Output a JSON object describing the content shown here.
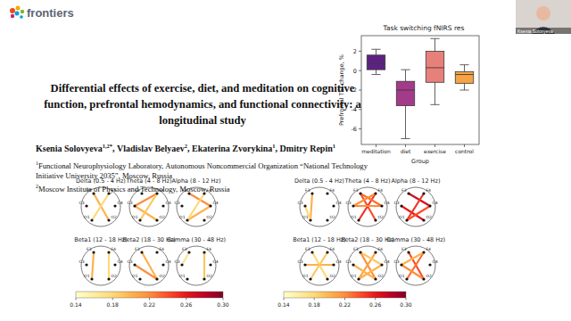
{
  "logo": "frontiers",
  "webcam_label": "Ksenia Solovyeva",
  "paper": {
    "title": [
      "Differential effects of exercise, diet, and meditation on cognitive",
      "function, prefrontal hemodynamics, and functional connectivity: a",
      "longitudinal study"
    ],
    "authors": [
      {
        "name": "Ksenia Solovyeva",
        "sup": "1,2*"
      },
      {
        "name": "Vladislav Belyaev",
        "sup": "2"
      },
      {
        "name": "Ekaterina Zvorykina",
        "sup": "1"
      },
      {
        "name": "Dmitry Repin",
        "sup": "1"
      }
    ],
    "author_separator": ", ",
    "affiliations": [
      {
        "sup": "1",
        "text": "Functional Neurophysiology Laboratory, Autonomous Noncommercial Organization “National Technology Initiative University 2035”, Moscow, Russia"
      },
      {
        "sup": "2",
        "text": "Moscow Institute of Physics and Technology, Moscow, Russia"
      }
    ]
  },
  "chart_data": {
    "type": "box",
    "title": "Task switching fNIRS res",
    "x_label": "Group",
    "y_label": "Prefrontal TSI change, %",
    "categories": [
      "meditation",
      "diet",
      "exercise",
      "control"
    ],
    "colors": [
      "#5e2183",
      "#a33a8a",
      "#e8807a",
      "#f7a344"
    ],
    "boxes": [
      {
        "min": -0.4,
        "q1": 0.1,
        "median": 0.7,
        "q3": 1.6,
        "max": 2.2
      },
      {
        "min": -7.0,
        "q1": -3.6,
        "median": -2.0,
        "q3": -1.1,
        "max": 0.1
      },
      {
        "min": -3.5,
        "q1": -1.2,
        "median": 0.3,
        "q3": 2.0,
        "max": 3.3
      },
      {
        "min": -2.0,
        "q1": -1.3,
        "median": -0.4,
        "q3": -0.1,
        "max": 0.6
      }
    ],
    "ylim": [
      -7.6,
      3.6
    ],
    "yticks": [
      -6,
      -4,
      -2,
      0,
      2
    ],
    "grid": false
  },
  "electrodes": [
    "F3",
    "F4",
    "C3",
    "C4",
    "O1",
    "O2"
  ],
  "connectivity": [
    {
      "colorbar": {
        "range": [
          0.14,
          0.3
        ],
        "ticks": [
          0.14,
          0.18,
          0.22,
          0.26,
          {
            "value": 0.3,
            "label": "0.30"
          }
        ]
      },
      "panels": [
        {
          "title": "Delta (0.5 - 4 Hz)",
          "edges": [
            {
              "from": "F3",
              "to": "O2",
              "value": 0.2
            },
            {
              "from": "F4",
              "to": "O1",
              "value": 0.18
            }
          ]
        },
        {
          "title": "Theta (4 - 8 Hz)",
          "edges": [
            {
              "from": "F4",
              "to": "C3",
              "value": 0.22
            },
            {
              "from": "C3",
              "to": "O2",
              "value": 0.2
            },
            {
              "from": "F4",
              "to": "O1",
              "value": 0.19
            }
          ]
        },
        {
          "title": "Alpha (8 - 12 Hz)",
          "edges": [
            {
              "from": "F3",
              "to": "C4",
              "value": 0.22
            },
            {
              "from": "C4",
              "to": "O1",
              "value": 0.2
            },
            {
              "from": "F4",
              "to": "O1",
              "value": 0.18
            }
          ]
        },
        {
          "title": "Beta1 (12 - 18 Hz)",
          "edges": [
            {
              "from": "F3",
              "to": "O1",
              "value": 0.2
            },
            {
              "from": "F4",
              "to": "O2",
              "value": 0.18
            }
          ]
        },
        {
          "title": "Beta2 (18 - 30 Hz)",
          "edges": [
            {
              "from": "F3",
              "to": "O2",
              "value": 0.2
            },
            {
              "from": "C3",
              "to": "O2",
              "value": 0.22
            }
          ]
        },
        {
          "title": "Gamma (30 - 48 Hz)",
          "edges": [
            {
              "from": "F4",
              "to": "O2",
              "value": 0.19
            },
            {
              "from": "F3",
              "to": "C3",
              "value": 0.17
            }
          ]
        }
      ]
    },
    {
      "colorbar": {
        "range": [
          0.14,
          0.3
        ],
        "ticks": [
          0.14,
          0.18,
          0.22,
          0.26,
          {
            "value": 0.3,
            "label": "0.30"
          }
        ]
      },
      "panels": [
        {
          "title": "Delta (0.5 - 4 Hz)",
          "edges": [
            {
              "from": "F3",
              "to": "O1",
              "value": 0.2
            },
            {
              "from": "C3",
              "to": "O1",
              "value": 0.18
            }
          ]
        },
        {
          "title": "Theta (4 - 8 Hz)",
          "edges": [
            {
              "from": "F3",
              "to": "O2",
              "value": 0.24
            },
            {
              "from": "F4",
              "to": "O1",
              "value": 0.25
            },
            {
              "from": "C3",
              "to": "C4",
              "value": 0.22
            },
            {
              "from": "F3",
              "to": "C4",
              "value": 0.23
            },
            {
              "from": "F4",
              "to": "C3",
              "value": 0.22
            }
          ]
        },
        {
          "title": "Alpha (8 - 12 Hz)",
          "edges": [
            {
              "from": "F3",
              "to": "C4",
              "value": 0.27
            },
            {
              "from": "C3",
              "to": "O2",
              "value": 0.26
            },
            {
              "from": "F4",
              "to": "O1",
              "value": 0.25
            },
            {
              "from": "C4",
              "to": "O1",
              "value": 0.24
            }
          ]
        },
        {
          "title": "Beta1 (12 - 18 Hz)",
          "edges": [
            {
              "from": "F3",
              "to": "O2",
              "value": 0.18
            },
            {
              "from": "C3",
              "to": "C4",
              "value": 0.2
            },
            {
              "from": "F4",
              "to": "O1",
              "value": 0.19
            }
          ]
        },
        {
          "title": "Beta2 (18 - 30 Hz)",
          "edges": [
            {
              "from": "F3",
              "to": "O2",
              "value": 0.22
            },
            {
              "from": "F4",
              "to": "O1",
              "value": 0.21
            },
            {
              "from": "C3",
              "to": "O2",
              "value": 0.2
            },
            {
              "from": "C4",
              "to": "O1",
              "value": 0.2
            },
            {
              "from": "F3",
              "to": "C4",
              "value": 0.19
            }
          ]
        },
        {
          "title": "Gamma (30 - 48 Hz)",
          "edges": [
            {
              "from": "F3",
              "to": "O2",
              "value": 0.24
            },
            {
              "from": "F4",
              "to": "O1",
              "value": 0.23
            },
            {
              "from": "C3",
              "to": "O2",
              "value": 0.22
            },
            {
              "from": "F4",
              "to": "C3",
              "value": 0.2
            }
          ]
        }
      ]
    }
  ]
}
